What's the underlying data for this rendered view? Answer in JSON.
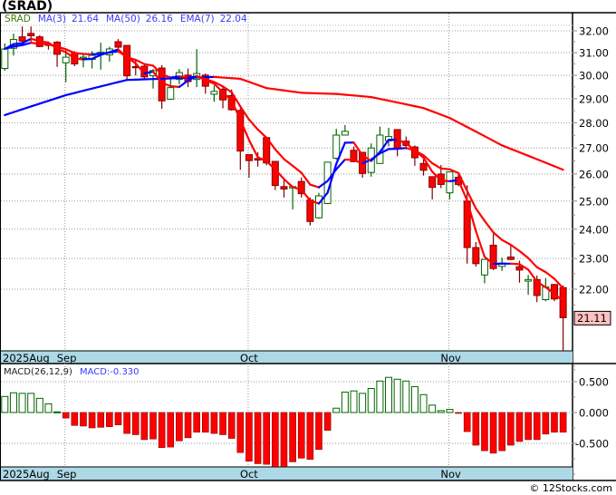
{
  "title": "(SRAD)",
  "legend": {
    "symbol": "SRAD",
    "ma3_label": "MA(3)",
    "ma3_value": "21.64",
    "ma50_label": "MA(50)",
    "ma50_value": "26.16",
    "ema7_label": "EMA(7)",
    "ema7_value": "22.04"
  },
  "macd_legend": {
    "label": "MACD(26,12,9)",
    "value": "MACD:-0.330"
  },
  "last_price_label": "21.11",
  "copyright": "© 12Stocks.com",
  "colors": {
    "up": "#006400",
    "down": "#ff0000",
    "down_outline": "#800000",
    "rising_line": "#0000ff",
    "falling_line": "#ff0000",
    "date_strip": "#add8e6",
    "last_price_bg": "#ffc0c0",
    "legend_text": "#3a3aff",
    "symbol_text": "#3c7d00"
  },
  "chart_data": [
    {
      "type": "candlestick",
      "title": "(SRAD)",
      "y_scale": "log",
      "ylim": [
        20.1,
        32.6
      ],
      "price_ticks": [
        "32.00",
        "31.00",
        "30.00",
        "29.00",
        "28.00",
        "27.00",
        "26.00",
        "25.00",
        "24.00",
        "23.00",
        "22.00"
      ],
      "month_labels": [
        {
          "label": "2025Aug",
          "index": 0,
          "gridline": false
        },
        {
          "label": "Sep",
          "index": 7,
          "gridline": true
        },
        {
          "label": "Oct",
          "index": 28,
          "gridline": true
        },
        {
          "label": "Nov",
          "index": 51,
          "gridline": true
        }
      ],
      "ohlc": [
        [
          30.3,
          31.42,
          30.2,
          31.17
        ],
        [
          31.2,
          31.87,
          30.87,
          31.6
        ],
        [
          31.72,
          32.2,
          31.35,
          31.53
        ],
        [
          31.88,
          32.2,
          31.4,
          31.77
        ],
        [
          31.72,
          31.8,
          31.25,
          31.28
        ],
        [
          31.4,
          31.48,
          31.14,
          31.33
        ],
        [
          31.48,
          31.53,
          30.37,
          30.93
        ],
        [
          30.55,
          31.14,
          29.7,
          30.8
        ],
        [
          31.0,
          31.07,
          30.4,
          30.5
        ],
        [
          30.75,
          30.9,
          30.35,
          30.8
        ],
        [
          30.7,
          31.07,
          30.3,
          30.88
        ],
        [
          31.0,
          31.45,
          30.25,
          31.02
        ],
        [
          30.9,
          31.27,
          30.6,
          31.17
        ],
        [
          31.5,
          31.62,
          31.1,
          31.25
        ],
        [
          31.33,
          31.33,
          29.78,
          29.98
        ],
        [
          30.38,
          30.65,
          30.0,
          30.34
        ],
        [
          30.4,
          30.47,
          29.8,
          29.93
        ],
        [
          29.98,
          30.27,
          29.43,
          30.21
        ],
        [
          30.32,
          30.45,
          28.58,
          28.91
        ],
        [
          28.98,
          29.88,
          28.95,
          29.47
        ],
        [
          29.82,
          30.27,
          29.62,
          30.12
        ],
        [
          30.01,
          30.3,
          29.49,
          29.73
        ],
        [
          29.82,
          31.16,
          29.49,
          30.08
        ],
        [
          30.01,
          30.08,
          29.21,
          29.53
        ],
        [
          29.19,
          29.56,
          28.87,
          29.31
        ],
        [
          29.4,
          29.49,
          28.6,
          28.95
        ],
        [
          29.13,
          29.39,
          28.5,
          28.54
        ],
        [
          28.51,
          28.6,
          26.16,
          26.88
        ],
        [
          26.74,
          26.74,
          25.86,
          26.51
        ],
        [
          26.59,
          26.83,
          26.28,
          26.53
        ],
        [
          27.41,
          27.41,
          26.33,
          26.42
        ],
        [
          26.48,
          26.48,
          25.4,
          25.57
        ],
        [
          25.53,
          25.76,
          25.13,
          25.44
        ],
        [
          25.48,
          25.55,
          24.7,
          25.53
        ],
        [
          25.72,
          25.87,
          25.13,
          25.27
        ],
        [
          25.04,
          25.13,
          24.13,
          24.27
        ],
        [
          24.4,
          25.3,
          24.37,
          25.19
        ],
        [
          24.91,
          26.45,
          24.89,
          26.45
        ],
        [
          26.6,
          27.76,
          26.54,
          27.51
        ],
        [
          27.51,
          27.91,
          27.51,
          27.66
        ],
        [
          26.91,
          27.06,
          26.45,
          26.47
        ],
        [
          26.83,
          26.83,
          25.86,
          26.02
        ],
        [
          26.06,
          27.18,
          25.9,
          27.0
        ],
        [
          26.4,
          27.85,
          26.4,
          27.51
        ],
        [
          27.28,
          27.8,
          27.06,
          27.45
        ],
        [
          27.73,
          27.73,
          26.68,
          27.0
        ],
        [
          27.27,
          27.45,
          26.94,
          27.1
        ],
        [
          27.04,
          27.1,
          26.31,
          26.62
        ],
        [
          26.4,
          26.56,
          25.94,
          26.14
        ],
        [
          25.9,
          25.9,
          25.06,
          25.5
        ],
        [
          26.0,
          26.34,
          25.47,
          25.61
        ],
        [
          25.3,
          26.1,
          25.06,
          26.08
        ],
        [
          25.88,
          26.06,
          25.54,
          25.61
        ],
        [
          25.0,
          25.58,
          22.83,
          23.37
        ],
        [
          23.37,
          23.56,
          22.73,
          22.83
        ],
        [
          22.46,
          22.97,
          22.19,
          22.97
        ],
        [
          23.45,
          23.84,
          22.62,
          22.67
        ],
        [
          22.74,
          23.03,
          22.59,
          22.85
        ],
        [
          23.05,
          23.47,
          22.95,
          22.97
        ],
        [
          22.73,
          22.93,
          22.21,
          22.62
        ],
        [
          22.26,
          22.46,
          21.82,
          22.31
        ],
        [
          22.31,
          22.44,
          21.59,
          21.8
        ],
        [
          21.67,
          22.36,
          21.62,
          22.07
        ],
        [
          22.15,
          22.17,
          21.62,
          21.69
        ],
        [
          22.05,
          22.12,
          20.1,
          21.11
        ]
      ],
      "ma50_points": [
        [
          0,
          28.32
        ],
        [
          7,
          29.15
        ],
        [
          14,
          29.8
        ],
        [
          24,
          29.93
        ],
        [
          27,
          29.85
        ],
        [
          30,
          29.45
        ],
        [
          34,
          29.25
        ],
        [
          38,
          29.2
        ],
        [
          42,
          29.07
        ],
        [
          45,
          28.84
        ],
        [
          48,
          28.61
        ],
        [
          51,
          28.2
        ],
        [
          57,
          27.1
        ],
        [
          64,
          26.16
        ]
      ],
      "ma_periods": {
        "ma_short": 3,
        "ema": 7
      }
    },
    {
      "type": "bar",
      "title": "MACD(26,12,9)",
      "y_ticks": [
        "0.500",
        "0.000",
        "-0.500"
      ],
      "ylim": [
        -0.88,
        0.68
      ],
      "values": [
        0.26,
        0.32,
        0.31,
        0.31,
        0.23,
        0.14,
        0.01,
        -0.09,
        -0.21,
        -0.22,
        -0.25,
        -0.24,
        -0.23,
        -0.2,
        -0.34,
        -0.36,
        -0.44,
        -0.43,
        -0.57,
        -0.56,
        -0.46,
        -0.41,
        -0.32,
        -0.32,
        -0.34,
        -0.36,
        -0.42,
        -0.65,
        -0.79,
        -0.83,
        -0.84,
        -0.88,
        -0.88,
        -0.8,
        -0.74,
        -0.76,
        -0.6,
        -0.29,
        0.07,
        0.33,
        0.35,
        0.31,
        0.39,
        0.51,
        0.57,
        0.54,
        0.51,
        0.42,
        0.29,
        0.12,
        0.03,
        0.05,
        -0.005,
        -0.31,
        -0.53,
        -0.62,
        -0.66,
        -0.62,
        -0.53,
        -0.47,
        -0.44,
        -0.44,
        -0.35,
        -0.32,
        -0.32
      ]
    }
  ]
}
